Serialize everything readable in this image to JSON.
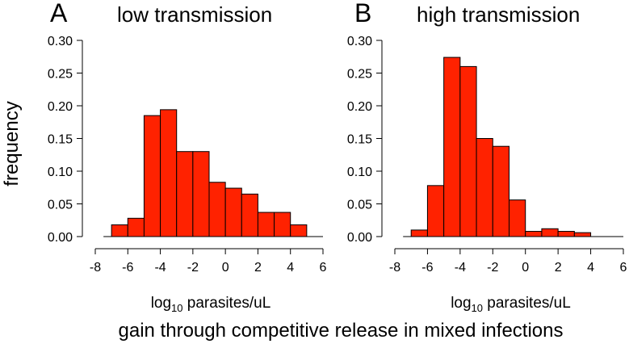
{
  "figure": {
    "y_label": "frequency",
    "caption": "gain through competitive release in mixed infections",
    "bar_color": "#ff2200",
    "bar_edge_color": "#000000"
  },
  "chart_data": [
    {
      "type": "bar",
      "panel_letter": "A",
      "title": "low transmission",
      "xlabel_base": "log",
      "xlabel_sub": "10",
      "xlabel_rest": " parasites/uL",
      "ylabel": "frequency",
      "xlim": [
        -8,
        6
      ],
      "ylim": [
        0,
        0.3
      ],
      "x_ticks": [
        -8,
        -6,
        -4,
        -2,
        0,
        2,
        4,
        6
      ],
      "x_tick_labels": [
        "-8",
        "-6",
        "-4",
        "-2",
        "0",
        "2",
        "4",
        "6"
      ],
      "y_ticks": [
        0,
        0.05,
        0.1,
        0.15,
        0.2,
        0.25,
        0.3
      ],
      "y_tick_labels": [
        "0.00",
        "0.05",
        "0.10",
        "0.15",
        "0.20",
        "0.25",
        "0.30"
      ],
      "bin_width": 1,
      "bins": [
        {
          "x0": -7,
          "x1": -6,
          "value": 0.018
        },
        {
          "x0": -6,
          "x1": -5,
          "value": 0.028
        },
        {
          "x0": -5,
          "x1": -4,
          "value": 0.185
        },
        {
          "x0": -4,
          "x1": -3,
          "value": 0.194
        },
        {
          "x0": -3,
          "x1": -2,
          "value": 0.13
        },
        {
          "x0": -2,
          "x1": -1,
          "value": 0.13
        },
        {
          "x0": -1,
          "x1": 0,
          "value": 0.083
        },
        {
          "x0": 0,
          "x1": 1,
          "value": 0.074
        },
        {
          "x0": 1,
          "x1": 2,
          "value": 0.065
        },
        {
          "x0": 2,
          "x1": 3,
          "value": 0.037
        },
        {
          "x0": 3,
          "x1": 4,
          "value": 0.037
        },
        {
          "x0": 4,
          "x1": 5,
          "value": 0.018
        }
      ]
    },
    {
      "type": "bar",
      "panel_letter": "B",
      "title": "high transmission",
      "xlabel_base": "log",
      "xlabel_sub": "10",
      "xlabel_rest": " parasites/uL",
      "ylabel": "frequency",
      "xlim": [
        -8,
        6
      ],
      "ylim": [
        0,
        0.3
      ],
      "x_ticks": [
        -8,
        -6,
        -4,
        -2,
        0,
        2,
        4,
        6
      ],
      "x_tick_labels": [
        "-8",
        "-6",
        "-4",
        "-2",
        "0",
        "2",
        "4",
        "6"
      ],
      "y_ticks": [
        0,
        0.05,
        0.1,
        0.15,
        0.2,
        0.25,
        0.3
      ],
      "y_tick_labels": [
        "0.00",
        "0.05",
        "0.10",
        "0.15",
        "0.20",
        "0.25",
        "0.30"
      ],
      "bin_width": 1,
      "bins": [
        {
          "x0": -7,
          "x1": -6,
          "value": 0.01
        },
        {
          "x0": -6,
          "x1": -5,
          "value": 0.078
        },
        {
          "x0": -5,
          "x1": -4,
          "value": 0.274
        },
        {
          "x0": -4,
          "x1": -3,
          "value": 0.26
        },
        {
          "x0": -3,
          "x1": -2,
          "value": 0.15
        },
        {
          "x0": -2,
          "x1": -1,
          "value": 0.138
        },
        {
          "x0": -1,
          "x1": 0,
          "value": 0.056
        },
        {
          "x0": 0,
          "x1": 1,
          "value": 0.008
        },
        {
          "x0": 1,
          "x1": 2,
          "value": 0.012
        },
        {
          "x0": 2,
          "x1": 3,
          "value": 0.008
        },
        {
          "x0": 3,
          "x1": 4,
          "value": 0.006
        }
      ]
    }
  ]
}
